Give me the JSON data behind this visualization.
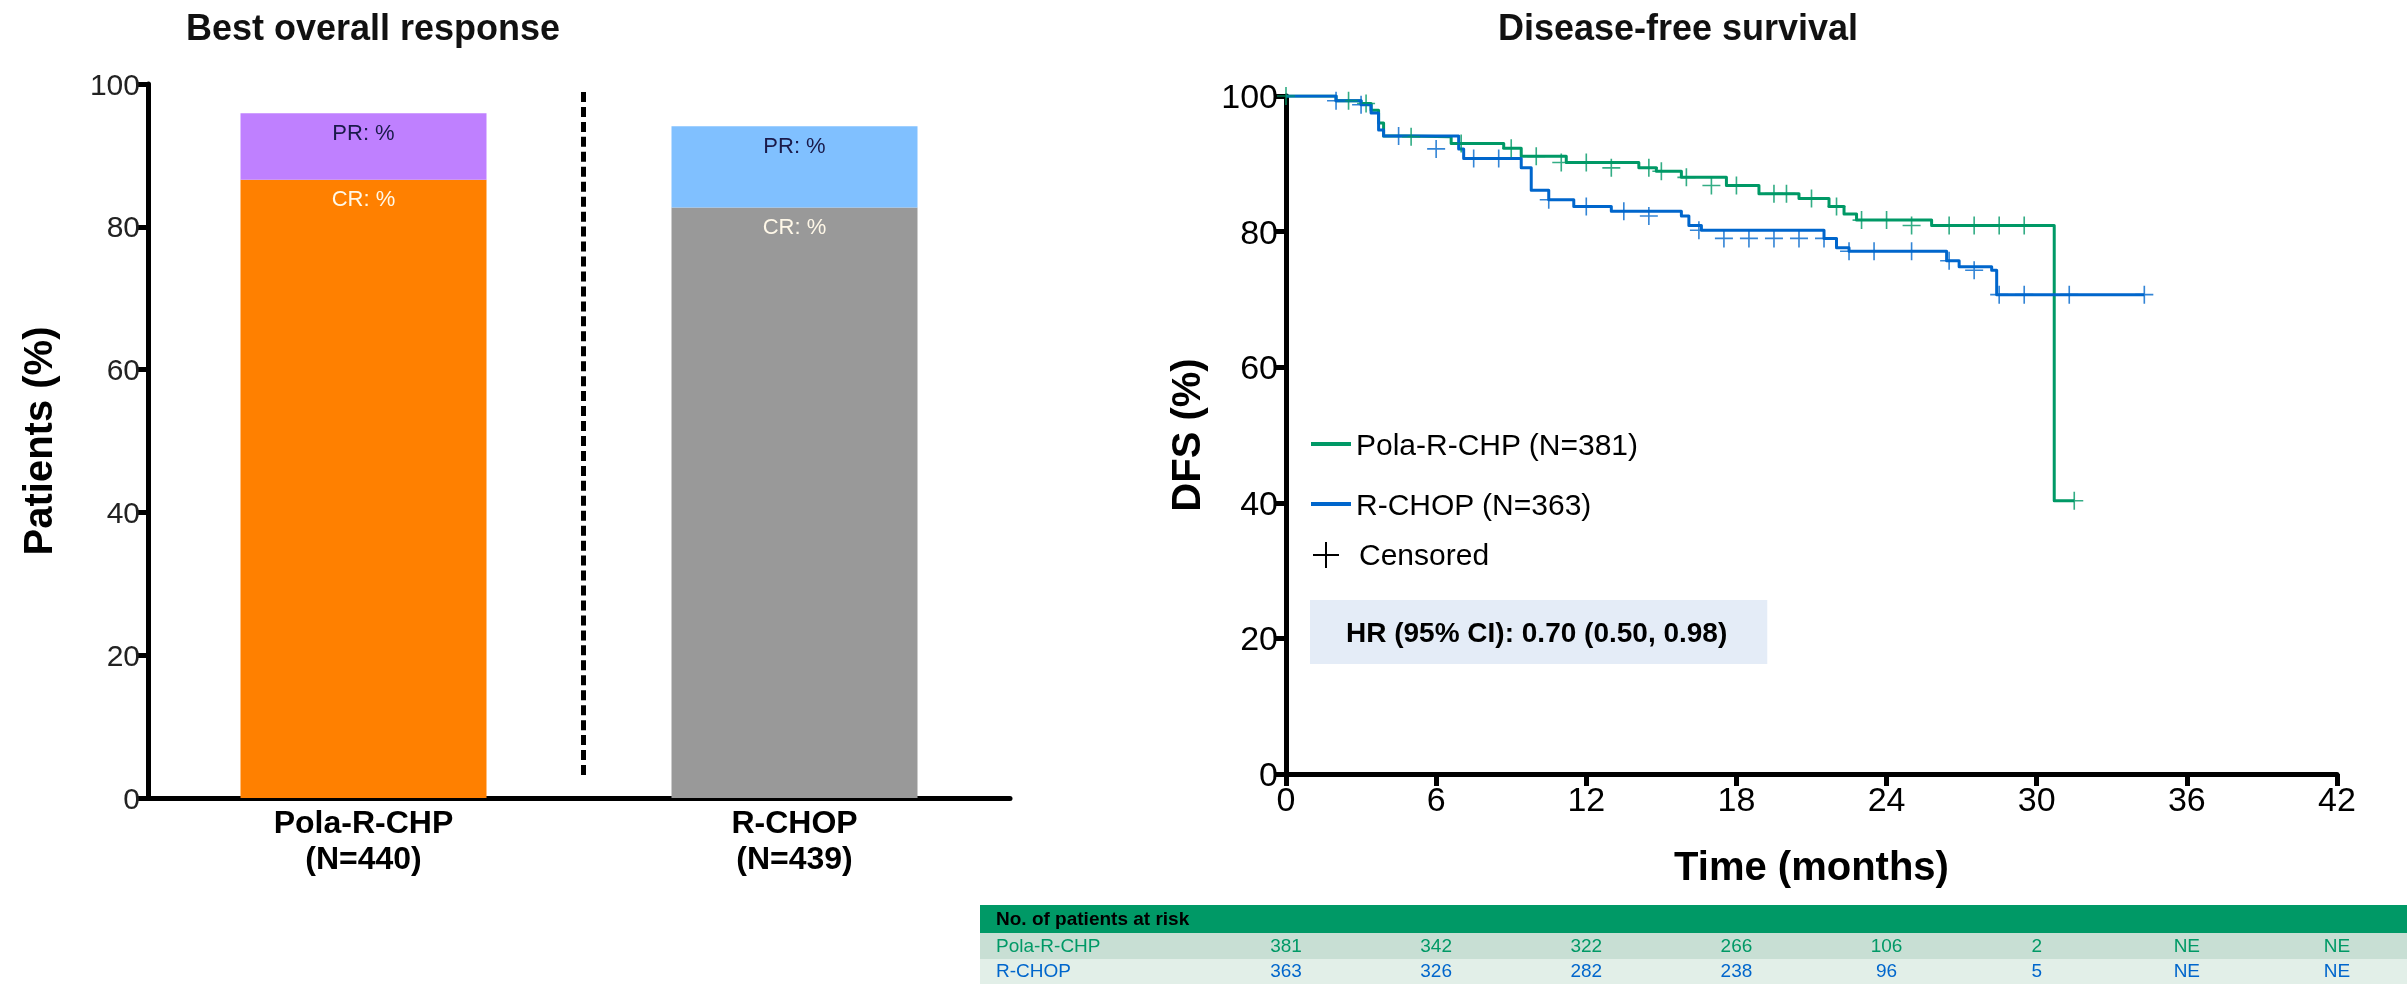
{
  "chart_data": [
    {
      "type": "bar",
      "title": "Best overall response",
      "ylabel": "Patients (%)",
      "categories": [
        "Pola-R-CHP\n(N=440)",
        "R-CHOP\n(N=439)"
      ],
      "stacked": true,
      "ylim": [
        0,
        100
      ],
      "yticks": [
        0,
        20,
        40,
        60,
        80,
        100
      ],
      "series": [
        {
          "colors": [
            "#ff8000",
            "#999999"
          ],
          "values": [
            86.6,
            82.7
          ],
          "value_labels": [
            "CR: %",
            "CR: %"
          ]
        },
        {
          "colors": [
            "#bf80ff",
            "#80c0ff"
          ],
          "values": [
            9.3,
            11.4
          ],
          "value_labels": [
            "PR: %",
            "PR: %"
          ]
        }
      ]
    },
    {
      "type": "step",
      "title": "Disease-free survival",
      "xlabel": "Time (months)",
      "ylabel": "DFS (%)",
      "xlim": [
        0,
        42
      ],
      "xticks": [
        0,
        6,
        12,
        18,
        24,
        30,
        36,
        42
      ],
      "ylim": [
        0,
        100
      ],
      "yticks": [
        0,
        20,
        40,
        60,
        80,
        100
      ],
      "legend": "bottom left",
      "annotations": [
        "HR (95% CI): 0.70 (0.50, 0.98)",
        "Censored",
        "No. of patients at risk",
        "Pola-R-CHP",
        "381",
        "342",
        "322",
        "266",
        "106",
        "2",
        "NE",
        "NE",
        "R-CHOP",
        "363",
        "326",
        "282",
        "238",
        "96",
        "5",
        "NE",
        "NE"
      ],
      "series": [
        {
          "name": "Pola-R-CHP (N=381)",
          "color": "#009966",
          "x": [
            0,
            2.0,
            3.0,
            3.4,
            3.7,
            3.9,
            4.8,
            6.6,
            8.7,
            9.4,
            11.2,
            14.1,
            14.8,
            15.8,
            17.6,
            18.9,
            20.5,
            21.7,
            22.3,
            22.8,
            25.8,
            30.7,
            31.5
          ],
          "values": [
            100,
            99.3,
            98.9,
            97.9,
            96,
            94.1,
            94,
            93,
            92.3,
            91.1,
            90.2,
            89.4,
            88.9,
            88,
            86.8,
            85.6,
            84.9,
            83.7,
            82.6,
            81.7,
            80.9,
            40.3,
            40.3
          ]
        },
        {
          "name": "R-CHOP (N=363)",
          "color": "#0066cc",
          "x": [
            0,
            2.0,
            3.0,
            3.4,
            3.7,
            3.9,
            6.9,
            7.1,
            9.4,
            9.8,
            10.5,
            11.5,
            13,
            15.8,
            16.1,
            16.6,
            21.5,
            22,
            22.5,
            26.4,
            26.9,
            28.2,
            28.4,
            34.3
          ],
          "values": [
            100,
            99.3,
            98.7,
            97.5,
            95,
            94.1,
            92.2,
            90.8,
            89.4,
            86.1,
            84.7,
            83.7,
            83,
            82.3,
            80.9,
            80.2,
            79,
            77.6,
            77.1,
            75.7,
            74.8,
            74.3,
            70.7,
            70.7
          ]
        },
        {
          "type": "scatter",
          "marker": "cross",
          "color": "#009966",
          "x": [
            0,
            2.5,
            3.2,
            5,
            7,
            9,
            10,
            11,
            12,
            13,
            14.5,
            15,
            16,
            17,
            18,
            19.5,
            20,
            21,
            22,
            23,
            24,
            25,
            26.5,
            27.5,
            28.5,
            29.5,
            31.5
          ],
          "values": [
            100,
            99.3,
            98.9,
            94,
            93,
            92.3,
            91.1,
            90.2,
            90.2,
            89.4,
            89.4,
            88.9,
            88,
            86.8,
            86.8,
            85.6,
            85.6,
            84.9,
            83.7,
            81.7,
            81.7,
            80.9,
            80.9,
            80.9,
            80.9,
            80.9,
            40.3
          ]
        },
        {
          "type": "scatter",
          "marker": "cross",
          "color": "#0066cc",
          "x": [
            2,
            3,
            4.5,
            6,
            7.5,
            8.5,
            10.5,
            12,
            13.5,
            14.5,
            16.5,
            17.5,
            18.5,
            19.5,
            20.5,
            21.5,
            22.5,
            23.5,
            25,
            26.5,
            27.5,
            28.5,
            29.5,
            31.3,
            34.3
          ],
          "values": [
            99.3,
            98.7,
            94.1,
            92.2,
            90.8,
            90.8,
            84.7,
            83.7,
            83,
            82.3,
            80.2,
            79,
            79,
            79,
            79,
            79,
            77.1,
            77.1,
            77.1,
            75.7,
            74.3,
            70.7,
            70.7,
            70.7,
            70.7
          ]
        }
      ]
    }
  ]
}
